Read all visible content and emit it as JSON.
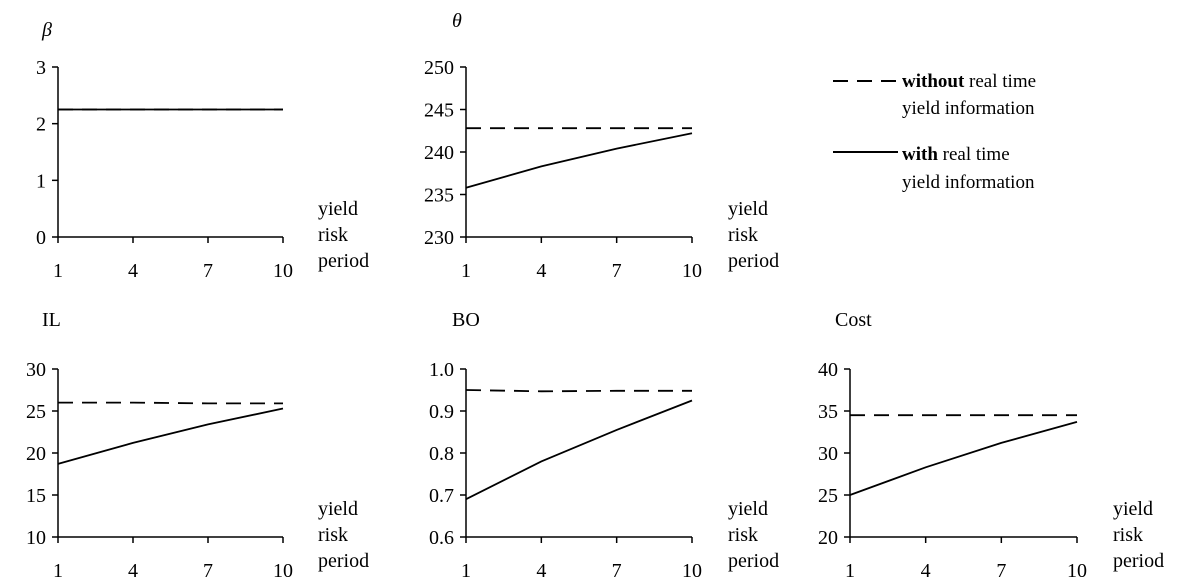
{
  "chart_data": [
    {
      "type": "line",
      "title": "β",
      "xlabel": [
        "yield",
        "risk",
        "period"
      ],
      "x": [
        1,
        4,
        7,
        10
      ],
      "xlim": [
        1,
        10
      ],
      "ylim": [
        0,
        3
      ],
      "yticks": [
        "0",
        "1",
        "2",
        "3"
      ],
      "xticks": [
        "1",
        "4",
        "7",
        "10"
      ],
      "series": [
        {
          "style": "dashed",
          "x": [
            1,
            4,
            7,
            10
          ],
          "values": [
            2.25,
            2.25,
            2.25,
            2.25
          ]
        },
        {
          "style": "solid",
          "x": [
            1,
            4,
            7,
            10
          ],
          "values": [
            2.25,
            2.25,
            2.25,
            2.25
          ]
        }
      ]
    },
    {
      "type": "line",
      "title": "θ",
      "xlabel": [
        "yield",
        "risk",
        "period"
      ],
      "xlim": [
        1,
        10
      ],
      "ylim": [
        230,
        250
      ],
      "yticks": [
        "230",
        "235",
        "240",
        "245",
        "250"
      ],
      "xticks": [
        "1",
        "4",
        "7",
        "10"
      ],
      "series": [
        {
          "style": "dashed",
          "x": [
            1,
            4,
            7,
            10
          ],
          "values": [
            242.8,
            242.8,
            242.8,
            242.8
          ]
        },
        {
          "style": "solid",
          "x": [
            1,
            4,
            7,
            10
          ],
          "values": [
            235.8,
            238.3,
            240.4,
            242.2
          ]
        }
      ]
    },
    {
      "type": "line",
      "title": "IL",
      "xlabel": [
        "yield",
        "risk",
        "period"
      ],
      "xlim": [
        1,
        10
      ],
      "ylim": [
        10,
        30
      ],
      "yticks": [
        "10",
        "15",
        "20",
        "25",
        "30"
      ],
      "xticks": [
        "1",
        "4",
        "7",
        "10"
      ],
      "series": [
        {
          "style": "dashed",
          "x": [
            1,
            4,
            7,
            10
          ],
          "values": [
            26.0,
            26.0,
            25.9,
            25.9
          ]
        },
        {
          "style": "solid",
          "x": [
            1,
            4,
            7,
            10
          ],
          "values": [
            18.7,
            21.2,
            23.4,
            25.3
          ]
        }
      ]
    },
    {
      "type": "line",
      "title": "BO",
      "xlabel": [
        "yield",
        "risk",
        "period"
      ],
      "xlim": [
        1,
        10
      ],
      "ylim": [
        0.6,
        1.0
      ],
      "yticks": [
        "0.6",
        "0.7",
        "0.8",
        "0.9",
        "1.0"
      ],
      "xticks": [
        "1",
        "4",
        "7",
        "10"
      ],
      "series": [
        {
          "style": "dashed",
          "x": [
            1,
            4,
            7,
            10
          ],
          "values": [
            0.95,
            0.947,
            0.948,
            0.948
          ]
        },
        {
          "style": "solid",
          "x": [
            1,
            4,
            7,
            10
          ],
          "values": [
            0.69,
            0.78,
            0.855,
            0.925
          ]
        }
      ]
    },
    {
      "type": "line",
      "title": "Cost",
      "xlabel": [
        "yield",
        "risk",
        "period"
      ],
      "xlim": [
        1,
        10
      ],
      "ylim": [
        20,
        40
      ],
      "yticks": [
        "20",
        "25",
        "30",
        "35",
        "40"
      ],
      "xticks": [
        "1",
        "4",
        "7",
        "10"
      ],
      "series": [
        {
          "style": "dashed",
          "x": [
            1,
            4,
            7,
            10
          ],
          "values": [
            34.5,
            34.5,
            34.5,
            34.5
          ]
        },
        {
          "style": "solid",
          "x": [
            1,
            4,
            7,
            10
          ],
          "values": [
            25.0,
            28.3,
            31.2,
            33.7
          ]
        }
      ]
    }
  ],
  "legend": {
    "items": [
      {
        "style": "dashed",
        "bold": "without",
        "rest": " real time",
        "line2": "yield information"
      },
      {
        "style": "solid",
        "bold": "with",
        "rest": " real time",
        "line2": "yield information"
      }
    ]
  }
}
